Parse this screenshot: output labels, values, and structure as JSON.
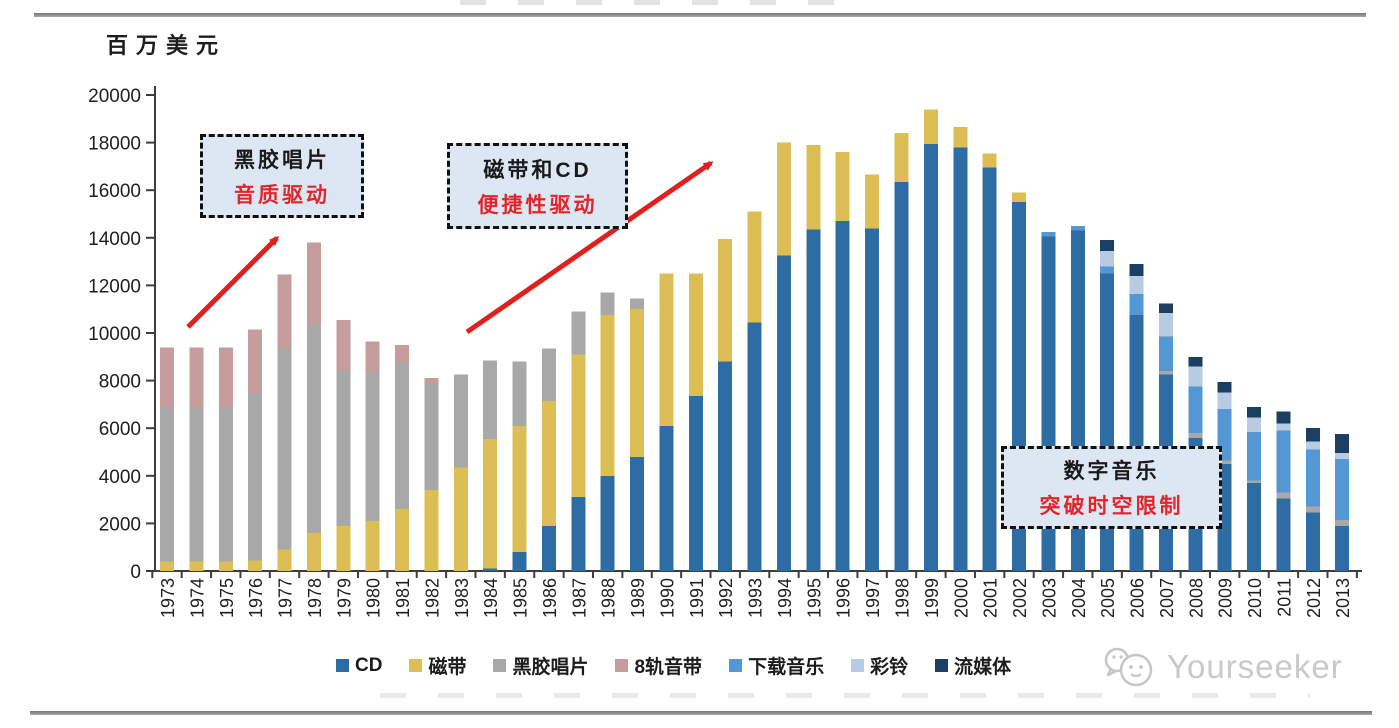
{
  "unit_label": "百万美元",
  "chart_data": {
    "type": "bar",
    "stacked": true,
    "title": "",
    "ylabel": "百万美元",
    "xlabel": "",
    "ylim": [
      0,
      20000
    ],
    "ytick_step": 2000,
    "grid": false,
    "legend_position": "bottom",
    "categories": [
      "1973",
      "1974",
      "1975",
      "1976",
      "1977",
      "1978",
      "1979",
      "1980",
      "1981",
      "1982",
      "1983",
      "1984",
      "1985",
      "1986",
      "1987",
      "1988",
      "1989",
      "1990",
      "1991",
      "1992",
      "1993",
      "1994",
      "1995",
      "1996",
      "1997",
      "1998",
      "1999",
      "2000",
      "2001",
      "2002",
      "2003",
      "2004",
      "2005",
      "2006",
      "2007",
      "2008",
      "2009",
      "2010",
      "2011",
      "2012",
      "2013"
    ],
    "series": [
      {
        "key": "cd",
        "name": "CD",
        "color": "#2e6da4",
        "values": [
          0,
          0,
          0,
          0,
          0,
          0,
          0,
          0,
          0,
          0,
          0,
          100,
          800,
          1900,
          3100,
          4000,
          4800,
          6100,
          7350,
          8800,
          10450,
          13250,
          14350,
          14700,
          14400,
          16350,
          17950,
          17800,
          16950,
          15500,
          14050,
          14300,
          12500,
          10750,
          8250,
          5600,
          4500,
          3700,
          3050,
          2450,
          1900
        ]
      },
      {
        "key": "cassette",
        "name": "磁带",
        "color": "#ddbe55",
        "values": [
          400,
          400,
          400,
          450,
          900,
          1600,
          1900,
          2100,
          2600,
          3400,
          4350,
          5450,
          5300,
          5250,
          6000,
          6750,
          6200,
          6400,
          5150,
          5150,
          4650,
          4750,
          3550,
          2900,
          2250,
          2050,
          1450,
          850,
          600,
          400,
          0,
          0,
          0,
          0,
          0,
          0,
          0,
          0,
          0,
          0,
          0
        ]
      },
      {
        "key": "vinyl",
        "name": "黑胶唱片",
        "color": "#a8a8a8",
        "values": [
          6500,
          6450,
          6500,
          7000,
          8450,
          8800,
          6550,
          6300,
          6150,
          4500,
          3900,
          3300,
          2700,
          2200,
          1800,
          950,
          450,
          0,
          0,
          0,
          0,
          0,
          0,
          0,
          0,
          0,
          0,
          0,
          0,
          0,
          0,
          0,
          0,
          0,
          150,
          200,
          150,
          100,
          250,
          250,
          250
        ]
      },
      {
        "key": "eight-track",
        "name": "8轨音带",
        "color": "#c69c9c",
        "values": [
          2500,
          2550,
          2500,
          2700,
          3100,
          3400,
          2100,
          1250,
          750,
          200,
          0,
          0,
          0,
          0,
          0,
          0,
          0,
          0,
          0,
          0,
          0,
          0,
          0,
          0,
          0,
          0,
          0,
          0,
          0,
          0,
          0,
          0,
          0,
          0,
          0,
          0,
          0,
          0,
          0,
          0,
          0
        ]
      },
      {
        "key": "downloads",
        "name": "下载音乐",
        "color": "#5596d5",
        "values": [
          0,
          0,
          0,
          0,
          0,
          0,
          0,
          0,
          0,
          0,
          0,
          0,
          0,
          0,
          0,
          0,
          0,
          0,
          0,
          0,
          0,
          0,
          0,
          0,
          0,
          0,
          0,
          0,
          0,
          0,
          200,
          200,
          300,
          900,
          1450,
          1950,
          2150,
          2050,
          2600,
          2400,
          2550
        ]
      },
      {
        "key": "ringtone",
        "name": "彩铃",
        "color": "#b7cbe2",
        "values": [
          0,
          0,
          0,
          0,
          0,
          0,
          0,
          0,
          0,
          0,
          0,
          0,
          0,
          0,
          0,
          0,
          0,
          0,
          0,
          0,
          0,
          0,
          0,
          0,
          0,
          0,
          0,
          0,
          0,
          0,
          0,
          0,
          650,
          750,
          1000,
          850,
          700,
          600,
          300,
          350,
          250
        ]
      },
      {
        "key": "streaming",
        "name": "流媒体",
        "color": "#1b3f63",
        "values": [
          0,
          0,
          0,
          0,
          0,
          0,
          0,
          0,
          0,
          0,
          0,
          0,
          0,
          0,
          0,
          0,
          0,
          0,
          0,
          0,
          0,
          0,
          0,
          0,
          0,
          0,
          0,
          0,
          0,
          0,
          0,
          0,
          450,
          500,
          400,
          400,
          450,
          450,
          500,
          550,
          800
        ]
      }
    ]
  },
  "legend": {
    "items": [
      {
        "key": "cd",
        "label": "CD",
        "color": "#2e6da4"
      },
      {
        "key": "cassette",
        "label": "磁带",
        "color": "#ddbe55"
      },
      {
        "key": "vinyl",
        "label": "黑胶唱片",
        "color": "#a8a8a8"
      },
      {
        "key": "eight-track",
        "label": "8轨音带",
        "color": "#c69c9c"
      },
      {
        "key": "downloads",
        "label": "下载音乐",
        "color": "#5596d5"
      },
      {
        "key": "ringtone",
        "label": "彩铃",
        "color": "#b7cbe2"
      },
      {
        "key": "streaming",
        "label": "流媒体",
        "color": "#1b3f63"
      }
    ]
  },
  "annotations": {
    "accent_red": "#e0252b",
    "arrow_color": "#e01f1f",
    "box_fill": "#dde7f3",
    "boxes": [
      {
        "line1": "黑胶唱片",
        "line2": "音质驱动"
      },
      {
        "line1": "磁带和CD",
        "line2": "便捷性驱动"
      },
      {
        "line1": "数字音乐",
        "line2": "突破时空限制"
      }
    ]
  },
  "watermark": {
    "text": "Yourseeker"
  }
}
